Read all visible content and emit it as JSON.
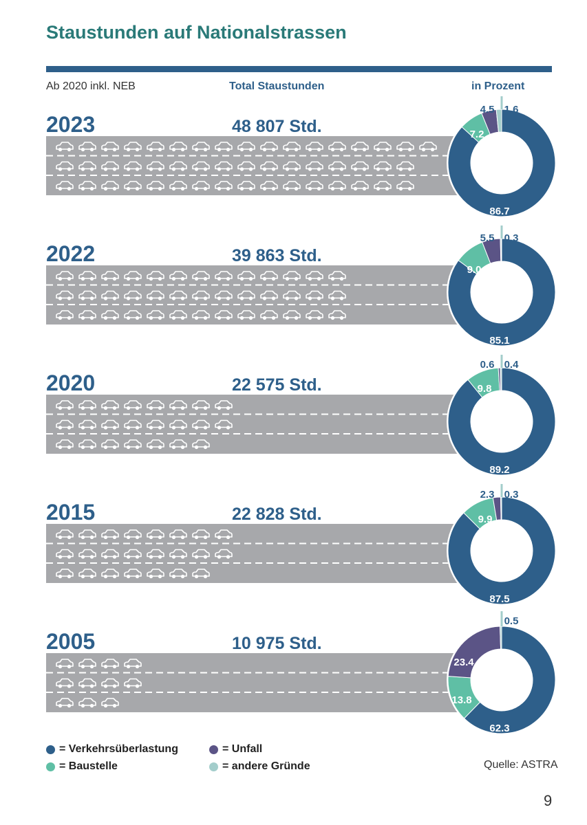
{
  "page": {
    "title": "Staustunden auf Nationalstrassen",
    "note": "Ab 2020 inkl. NEB",
    "col_total": "Total Staustunden",
    "col_percent": "in Prozent",
    "source": "Quelle: ASTRA",
    "page_number": "9"
  },
  "colors": {
    "verkehr": "#2e5f8a",
    "baustelle": "#5fbfa5",
    "unfall": "#5b5486",
    "andere": "#a3cdcb",
    "road": "#a7a8ab",
    "title": "#2a7a78"
  },
  "legend": [
    {
      "key": "verkehr",
      "label": "= Verkehrsüberlastung"
    },
    {
      "key": "baustelle",
      "label": "= Baustelle"
    },
    {
      "key": "unfall",
      "label": "= Unfall"
    },
    {
      "key": "andere",
      "label": "= andere Gründe"
    }
  ],
  "chart_data": {
    "type": "pie",
    "title": "Staustunden auf Nationalstrassen",
    "value_unit": "Std.",
    "categories": [
      "Verkehrsüberlastung",
      "Baustelle",
      "Unfall",
      "andere Gründe"
    ],
    "rows": [
      {
        "year": "2023",
        "total": "48 807 Std.",
        "total_value": 48807,
        "cars": [
          17,
          16,
          16
        ],
        "shares": {
          "verkehr": 86.7,
          "baustelle": 7.2,
          "unfall": 4.5,
          "andere": 1.6
        },
        "labels": {
          "verkehr": "86.7",
          "baustelle": "7.2",
          "unfall": "4.5",
          "andere": "1.6"
        }
      },
      {
        "year": "2022",
        "total": "39 863 Std.",
        "total_value": 39863,
        "cars": [
          13,
          13,
          13
        ],
        "shares": {
          "verkehr": 85.1,
          "baustelle": 9.0,
          "unfall": 5.5,
          "andere": 0.3
        },
        "labels": {
          "verkehr": "85.1",
          "baustelle": "9.0",
          "unfall": "5.5",
          "andere": "0.3"
        }
      },
      {
        "year": "2020",
        "total": "22 575 Std.",
        "total_value": 22575,
        "cars": [
          8,
          8,
          7
        ],
        "shares": {
          "verkehr": 89.2,
          "baustelle": 9.8,
          "unfall": 0.6,
          "andere": 0.4
        },
        "labels": {
          "verkehr": "89.2",
          "baustelle": "9.8",
          "unfall": "0.6",
          "andere": "0.4"
        }
      },
      {
        "year": "2015",
        "total": "22 828 Std.",
        "total_value": 22828,
        "cars": [
          8,
          8,
          7
        ],
        "shares": {
          "verkehr": 87.5,
          "baustelle": 9.9,
          "unfall": 2.3,
          "andere": 0.3
        },
        "labels": {
          "verkehr": "87.5",
          "baustelle": "9.9",
          "unfall": "2.3",
          "andere": "0.3"
        }
      },
      {
        "year": "2005",
        "total": "10 975 Std.",
        "total_value": 10975,
        "cars": [
          4,
          4,
          3
        ],
        "shares": {
          "verkehr": 62.3,
          "baustelle": 13.8,
          "unfall": 23.4,
          "andere": 0.5
        },
        "labels": {
          "verkehr": "62.3",
          "baustelle": "13.8",
          "unfall": "23.4",
          "andere": "0.5"
        }
      }
    ]
  }
}
